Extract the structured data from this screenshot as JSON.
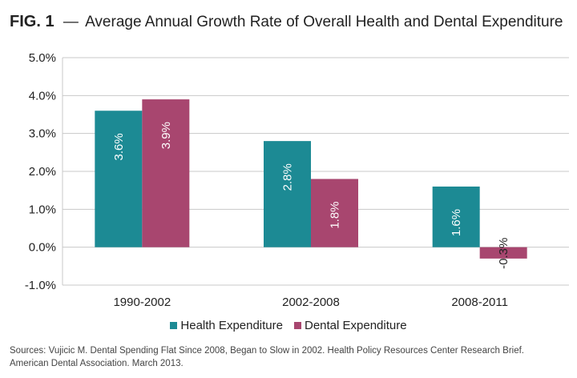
{
  "title": {
    "fig": "FIG. 1",
    "separator": "—",
    "text": "Average Annual Growth Rate of Overall Health and Dental Expenditure"
  },
  "chart_data": {
    "type": "bar",
    "categories": [
      "1990-2002",
      "2002-2008",
      "2008-2011"
    ],
    "series": [
      {
        "name": "Health Expenditure",
        "color": "#1c8a94",
        "values": [
          3.6,
          2.8,
          1.6
        ],
        "labels": [
          "3.6%",
          "2.8%",
          "1.6%"
        ]
      },
      {
        "name": "Dental Expenditure",
        "color": "#a8466f",
        "values": [
          3.9,
          1.8,
          -0.3
        ],
        "labels": [
          "3.9%",
          "1.8%",
          "-0.3%"
        ]
      }
    ],
    "ylim": [
      -1.0,
      5.0
    ],
    "yticks": [
      5.0,
      4.0,
      3.0,
      2.0,
      1.0,
      0.0,
      -1.0
    ],
    "ytick_labels": [
      "5.0%",
      "4.0%",
      "3.0%",
      "2.0%",
      "1.0%",
      "0.0%",
      "-1.0%"
    ],
    "grid": true,
    "legend_position": "bottom-center"
  },
  "source": {
    "line1": "Sources: Vujicic M. Dental Spending Flat Since 2008, Began to Slow in 2002. Health Policy Resources Center Research Brief.",
    "line2": "American Dental Association. March 2013."
  }
}
